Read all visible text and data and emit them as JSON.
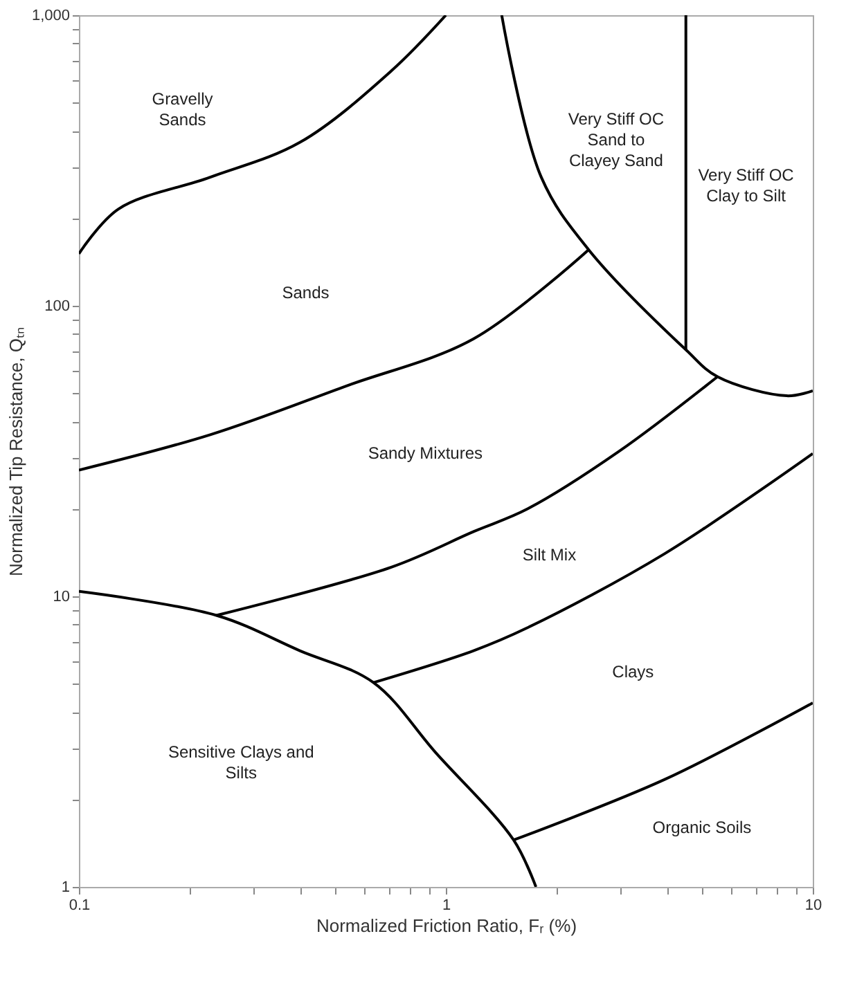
{
  "chart_data": {
    "type": "line",
    "xlabel": "Normalized Friction Ratio, Fᵣ (%)",
    "ylabel": "Normalized Tip Resistance, Qₜₙ",
    "log": "xy",
    "xlim": [
      0.1,
      10
    ],
    "ylim": [
      1,
      1000
    ],
    "xticks": [
      0.1,
      {
        "value": 0.2,
        "label": null
      },
      {
        "value": 0.3,
        "label": null
      },
      {
        "value": 0.4,
        "label": null
      },
      {
        "value": 0.5,
        "label": null
      },
      {
        "value": 0.6,
        "label": null
      },
      {
        "value": 0.7,
        "label": null
      },
      {
        "value": 0.8,
        "label": null
      },
      {
        "value": 0.9,
        "label": null
      },
      1,
      {
        "value": 2,
        "label": null
      },
      {
        "value": 3,
        "label": null
      },
      {
        "value": 4,
        "label": null
      },
      {
        "value": 5,
        "label": null
      },
      {
        "value": 6,
        "label": null
      },
      {
        "value": 7,
        "label": null
      },
      {
        "value": 8,
        "label": null
      },
      {
        "value": 9,
        "label": null
      },
      10
    ],
    "yticks": [
      1,
      {
        "value": 2,
        "label": null
      },
      {
        "value": 3,
        "label": null
      },
      {
        "value": 4,
        "label": null
      },
      {
        "value": 5,
        "label": null
      },
      {
        "value": 6,
        "label": null
      },
      {
        "value": 7,
        "label": null
      },
      {
        "value": 8,
        "label": null
      },
      {
        "value": 9,
        "label": null
      },
      10,
      {
        "value": 20,
        "label": null
      },
      {
        "value": 30,
        "label": null
      },
      {
        "value": 40,
        "label": null
      },
      {
        "value": 50,
        "label": null
      },
      {
        "value": 60,
        "label": null
      },
      {
        "value": 70,
        "label": null
      },
      {
        "value": 80,
        "label": null
      },
      {
        "value": 90,
        "label": null
      },
      100,
      {
        "value": 200,
        "label": null
      },
      {
        "value": 300,
        "label": null
      },
      {
        "value": 400,
        "label": null
      },
      {
        "value": 500,
        "label": null
      },
      {
        "value": 600,
        "label": null
      },
      {
        "value": 700,
        "label": null
      },
      {
        "value": 800,
        "label": null
      },
      {
        "value": 900,
        "label": null
      },
      {
        "value": 1000,
        "label": "1,000"
      }
    ],
    "line_style": "solid",
    "series": [
      {
        "color": "#000000",
        "x": [
          0.1,
          0.128,
          0.228,
          0.4,
          0.71,
          1.0
        ],
        "values": [
          151,
          215,
          277,
          365,
          643,
          1000
        ]
      },
      {
        "color": "#000000",
        "x": [
          0.1,
          0.228,
          0.536,
          1.19,
          2.45
        ],
        "values": [
          27.2,
          36,
          53,
          77,
          156
        ]
      },
      {
        "color": "#000000",
        "x": [
          1.42,
          1.82,
          2.45,
          4.51,
          5.5,
          8.5,
          10
        ],
        "values": [
          1000,
          277,
          156,
          70.6,
          57,
          49,
          51
        ]
      },
      {
        "color": "#000000",
        "x": [
          4.51,
          4.51
        ],
        "values": [
          1000,
          70.6
        ]
      },
      {
        "color": "#000000",
        "x": [
          0.237,
          0.71,
          1.19,
          1.67,
          2.96,
          5.5
        ],
        "values": [
          8.6,
          12.6,
          16.7,
          20,
          31.5,
          57
        ]
      },
      {
        "color": "#000000",
        "x": [
          0.635,
          1.19,
          1.67,
          3.94,
          10
        ],
        "values": [
          5.05,
          6.5,
          7.8,
          14,
          31
        ]
      },
      {
        "color": "#000000",
        "x": [
          1.53,
          3.94,
          10
        ],
        "values": [
          1.45,
          2.34,
          4.3
        ]
      },
      {
        "color": "#000000",
        "x": [
          0.1,
          0.237,
          0.4,
          0.635,
          0.94,
          1.53,
          1.76
        ],
        "values": [
          10.4,
          8.6,
          6.5,
          5.05,
          2.89,
          1.45,
          1
        ]
      }
    ],
    "annotations": [
      "Gravelly\nSands",
      "Sands",
      "Sandy Mixtures",
      "Silt Mix",
      "Clays",
      "Organic Soils",
      "Sensitive Clays and\nSilts",
      "Very Stiff OC\nSand to\nClayey Sand",
      "Very Stiff OC\nClay to Silt"
    ]
  }
}
